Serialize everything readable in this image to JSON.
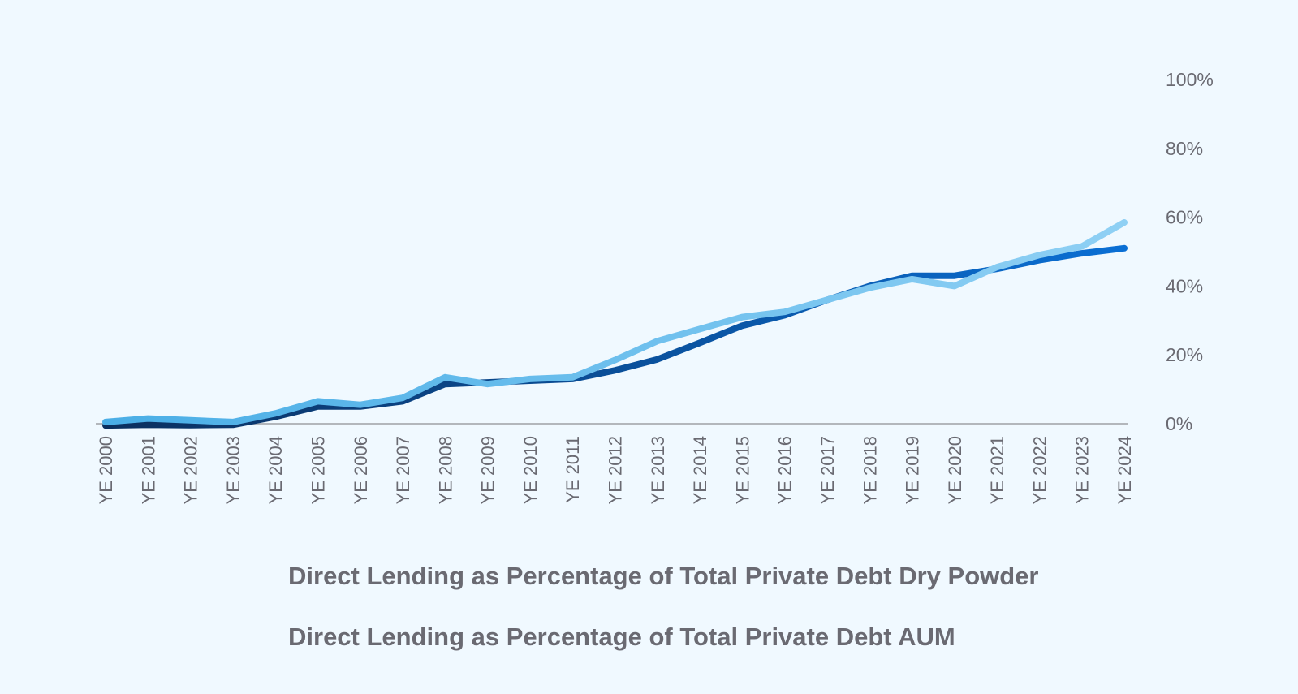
{
  "chart_data": {
    "type": "line",
    "title": "",
    "xlabel": "",
    "ylabel": "",
    "x": [
      "YE 2000",
      "YE 2001",
      "YE 2002",
      "YE 2003",
      "YE 2004",
      "YE 2005",
      "YE 2006",
      "YE 2007",
      "YE 2008",
      "YE 2009",
      "YE 2010",
      "YE 2011",
      "YE 2012",
      "YE 2013",
      "YE 2014",
      "YE 2015",
      "YE 2016",
      "YE 2017",
      "YE 2018",
      "YE 2019",
      "YE 2020",
      "YE 2021",
      "YE 2022",
      "YE 2023",
      "YE 2024"
    ],
    "y_ticks": [
      "0%",
      "20%",
      "40%",
      "60%",
      "80%",
      "100%"
    ],
    "ylim": [
      0,
      100
    ],
    "y_axis_position": "right",
    "grid": false,
    "legend_position": "bottom",
    "series": [
      {
        "name": "Direct Lending as Percentage of Total Private Debt AUM",
        "color": "#0a3f7c",
        "gradient": [
          "#0b2f5e",
          "#0a6fd4"
        ],
        "values": [
          -0.5,
          -0.3,
          -0.4,
          -0.3,
          2.0,
          5.0,
          5.0,
          6.5,
          11.5,
          12.0,
          12.5,
          13.0,
          15.5,
          18.7,
          23.5,
          28.5,
          31.5,
          36.0,
          40.0,
          43.0,
          43.0,
          45.0,
          47.5,
          49.5,
          51.0
        ]
      },
      {
        "name": "Direct Lending as Percentage of Total Private Debt Dry Powder",
        "color": "#7ccaf2",
        "gradient": [
          "#4aaee6",
          "#8fd0f4"
        ],
        "values": [
          0.5,
          1.5,
          1.0,
          0.5,
          3.0,
          6.5,
          5.5,
          7.5,
          13.5,
          11.5,
          13.0,
          13.5,
          18.5,
          24.0,
          27.5,
          31.0,
          32.5,
          36.0,
          39.5,
          42.0,
          40.0,
          45.5,
          49.0,
          51.5,
          58.5
        ]
      }
    ]
  }
}
